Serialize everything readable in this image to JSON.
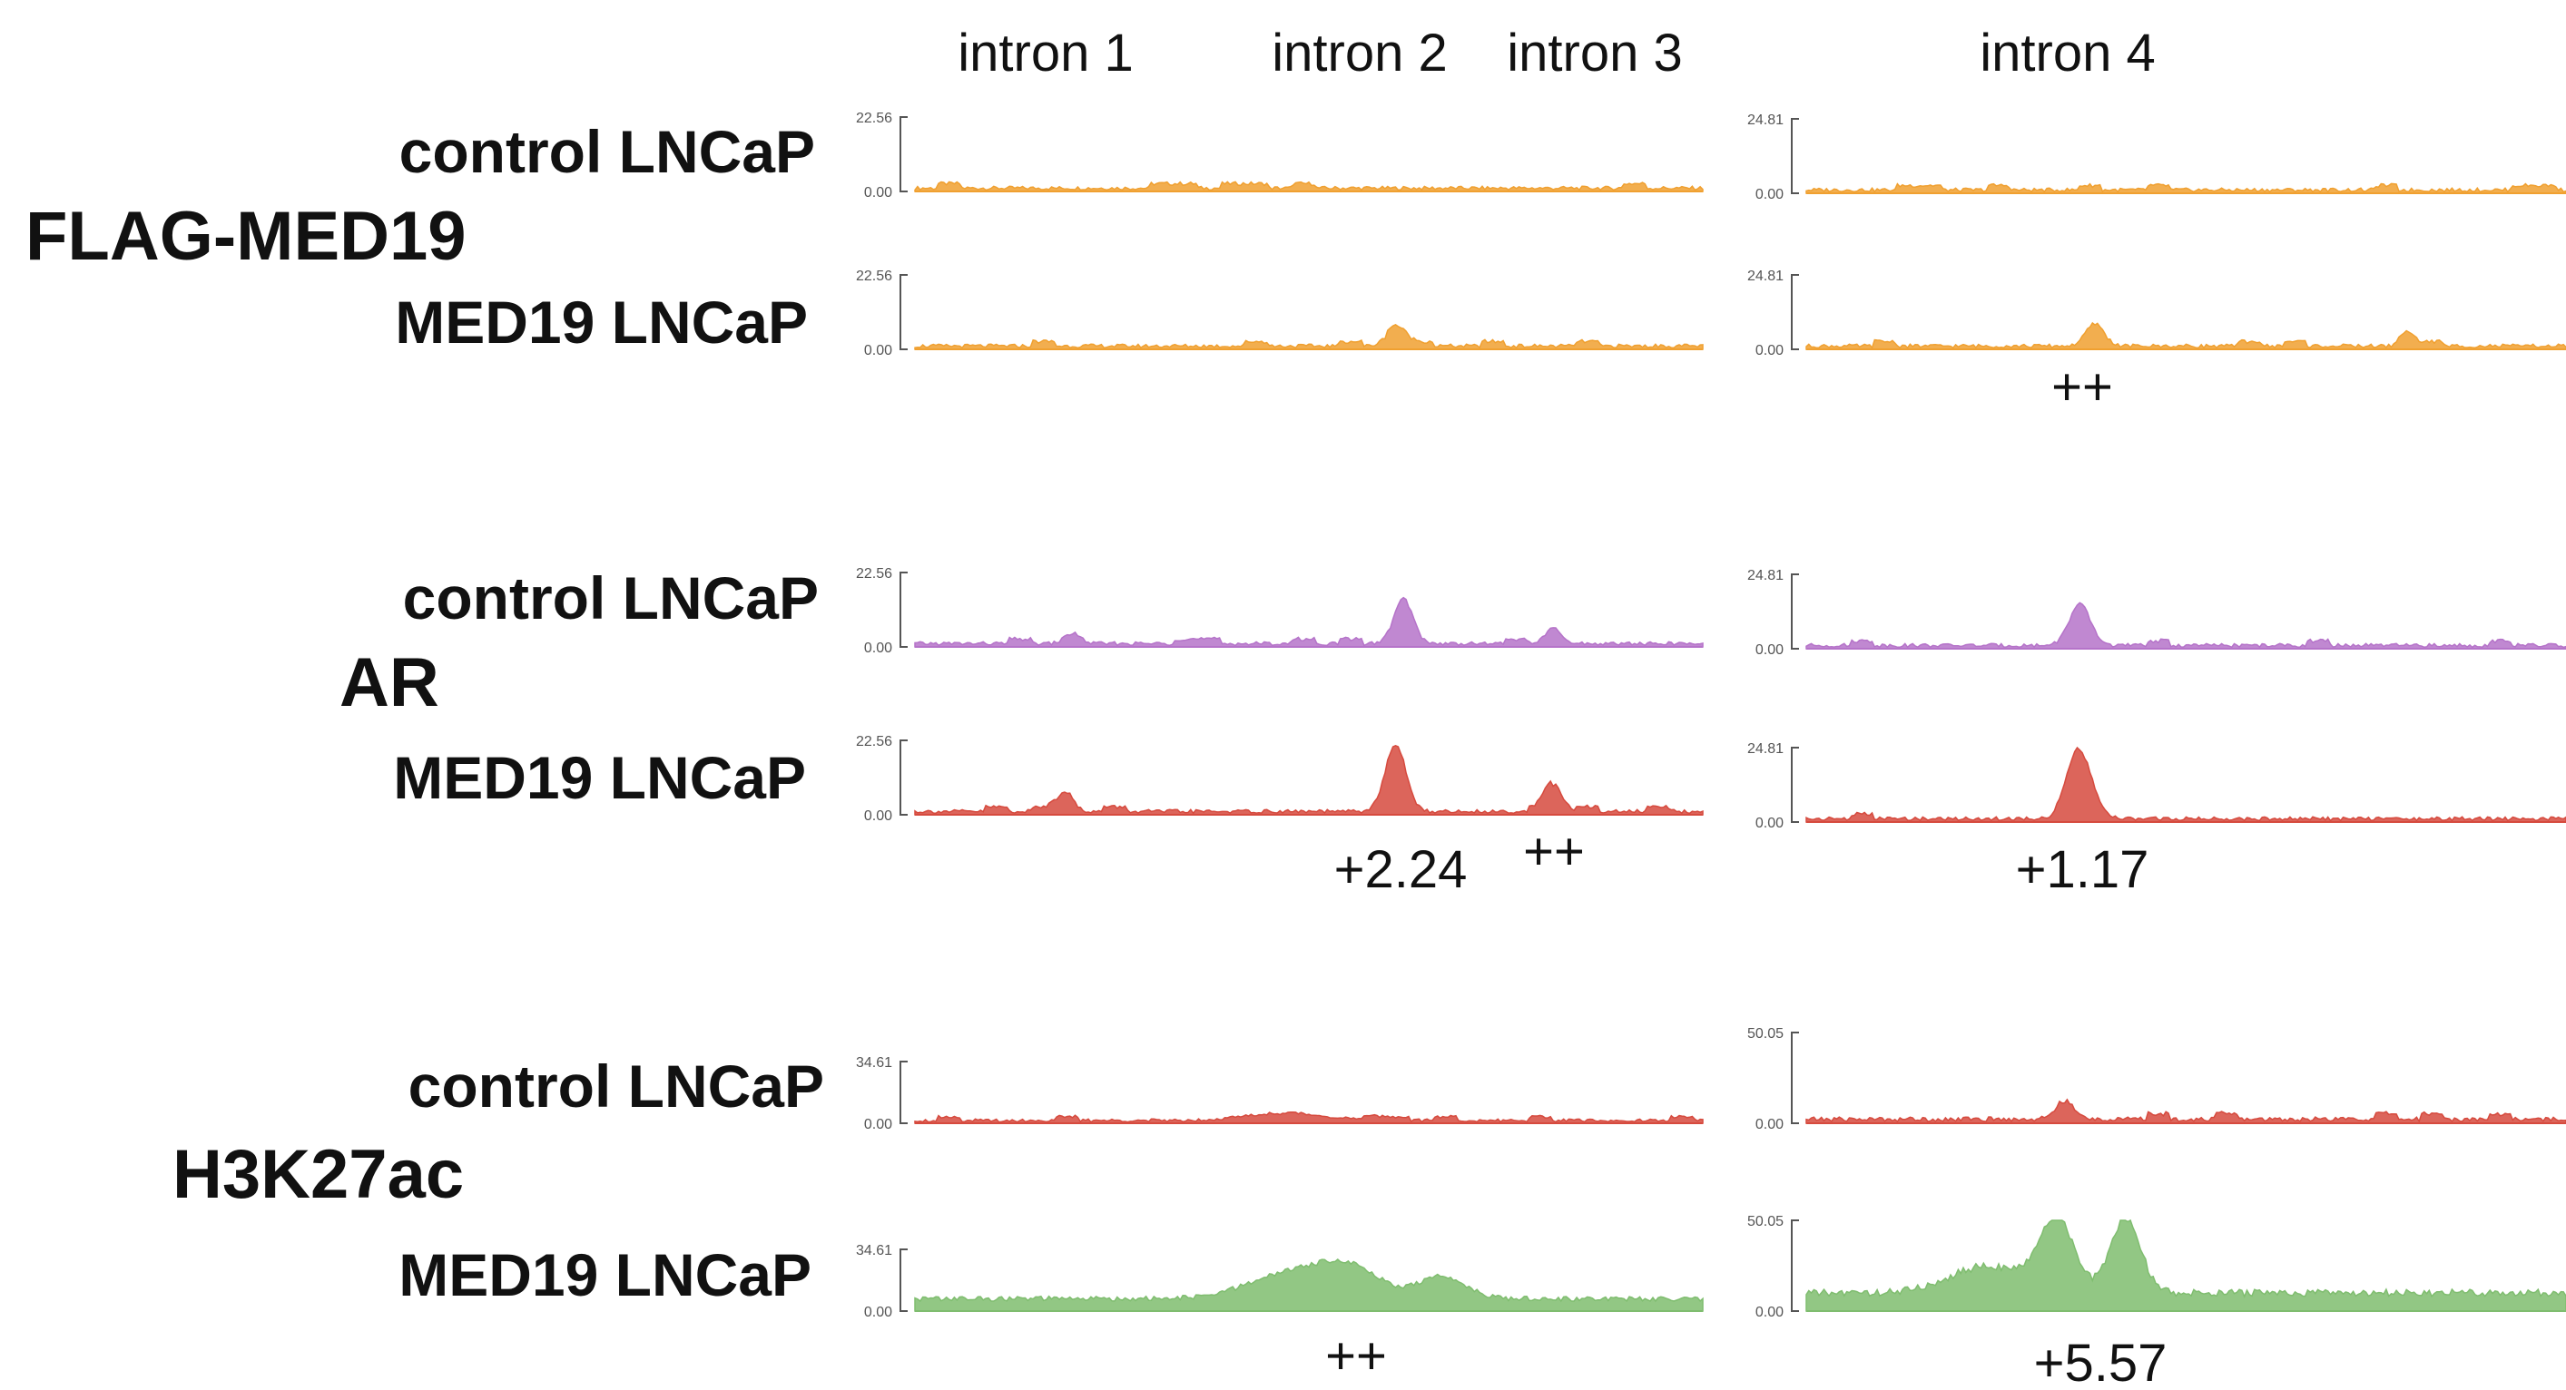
{
  "introns": [
    "intron 1",
    "intron 2",
    "intron 3",
    "intron 4"
  ],
  "colors": {
    "orange": "#f0a030",
    "purple": "#b573c9",
    "red": "#d64a3e",
    "green": "#7fbd6f"
  },
  "groups": [
    {
      "name": "FLAG-MED19",
      "tracks": [
        {
          "label": "control LNCaP",
          "color": "orange",
          "left": {
            "max": "22.56",
            "min": "0.00",
            "peaks": []
          },
          "right": {
            "max": "24.81",
            "min": "0.00",
            "peaks": []
          }
        },
        {
          "label": "MED19 LNCaP",
          "color": "orange",
          "left": {
            "max": "22.56",
            "min": "0.00",
            "peaks": [
              {
                "pos": 0.61,
                "h": 0.22,
                "w": 0.012
              }
            ]
          },
          "right": {
            "max": "24.81",
            "min": "0.00",
            "peaks": [
              {
                "pos": 0.38,
                "h": 0.3,
                "w": 0.012
              },
              {
                "pos": 0.79,
                "h": 0.14,
                "w": 0.008
              }
            ]
          }
        }
      ],
      "annotations": {
        "left": [],
        "right": [
          "++"
        ]
      }
    },
    {
      "name": "AR",
      "tracks": [
        {
          "label": "control LNCaP",
          "color": "purple",
          "left": {
            "max": "22.56",
            "min": "0.00",
            "peaks": [
              {
                "pos": 0.2,
                "h": 0.14,
                "w": 0.01
              },
              {
                "pos": 0.62,
                "h": 0.6,
                "w": 0.012
              },
              {
                "pos": 0.81,
                "h": 0.2,
                "w": 0.01
              }
            ]
          },
          "right": {
            "max": "24.81",
            "min": "0.00",
            "peaks": [
              {
                "pos": 0.36,
                "h": 0.55,
                "w": 0.014
              }
            ]
          }
        },
        {
          "label": "MED19 LNCaP",
          "color": "red",
          "left": {
            "max": "22.56",
            "min": "0.00",
            "peaks": [
              {
                "pos": 0.19,
                "h": 0.28,
                "w": 0.01
              },
              {
                "pos": 0.61,
                "h": 0.9,
                "w": 0.013
              },
              {
                "pos": 0.81,
                "h": 0.36,
                "w": 0.011
              }
            ]
          },
          "right": {
            "max": "24.81",
            "min": "0.00",
            "peaks": [
              {
                "pos": 0.36,
                "h": 0.9,
                "w": 0.016
              }
            ]
          }
        }
      ],
      "annotations": {
        "left": [
          "+2.24",
          "++"
        ],
        "right": [
          "+1.17"
        ]
      }
    },
    {
      "name": "H3K27ac",
      "tracks": [
        {
          "label": "control LNCaP",
          "color": "red",
          "left": {
            "max": "34.61",
            "min": "0.00",
            "peaks": [
              {
                "pos": 0.47,
                "h": 0.12,
                "w": 0.05
              }
            ]
          },
          "right": {
            "max": "50.05",
            "min": "0.00",
            "peaks": [
              {
                "pos": 0.34,
                "h": 0.2,
                "w": 0.012
              }
            ]
          }
        },
        {
          "label": "MED19 LNCaP",
          "color": "green",
          "left": {
            "max": "34.61",
            "min": "0.00",
            "peaks": [
              {
                "pos": 0.47,
                "h": 0.38,
                "w": 0.05
              },
              {
                "pos": 0.55,
                "h": 0.5,
                "w": 0.04
              },
              {
                "pos": 0.67,
                "h": 0.36,
                "w": 0.03
              }
            ]
          },
          "right": {
            "max": "50.05",
            "min": "0.00",
            "peaks": [
              {
                "pos": 0.33,
                "h": 0.8,
                "w": 0.022
              },
              {
                "pos": 0.42,
                "h": 0.82,
                "w": 0.02
              },
              {
                "pos": 0.24,
                "h": 0.3,
                "w": 0.05
              }
            ]
          }
        }
      ],
      "annotations": {
        "left": [
          "++"
        ],
        "right": [
          "+5.57"
        ]
      }
    }
  ]
}
